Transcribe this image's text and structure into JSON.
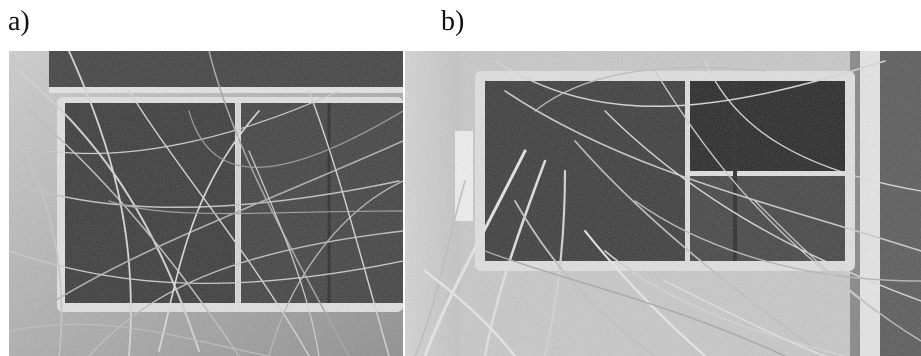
{
  "panels": [
    {
      "label": "a)"
    },
    {
      "label": "b)"
    }
  ],
  "palette": {
    "background": "#ffffff",
    "wall_light": "#d9d9d9",
    "wall_mid": "#a8a8a8",
    "soil_dark": "#2e2e2e",
    "soil_mid": "#4a4a4a",
    "tray_rim": "#e8e8e8",
    "grass_light": "#cfcfcf",
    "grass_mid": "#9a9a9a",
    "grass_dark": "#5a5a5a"
  },
  "images": [
    {
      "name": "photo-a",
      "subject": "grass-seedlings-in-tray-a",
      "style": "grayscale-photograph"
    },
    {
      "name": "photo-b",
      "subject": "grass-seedlings-in-tray-b",
      "style": "grayscale-photograph"
    }
  ]
}
